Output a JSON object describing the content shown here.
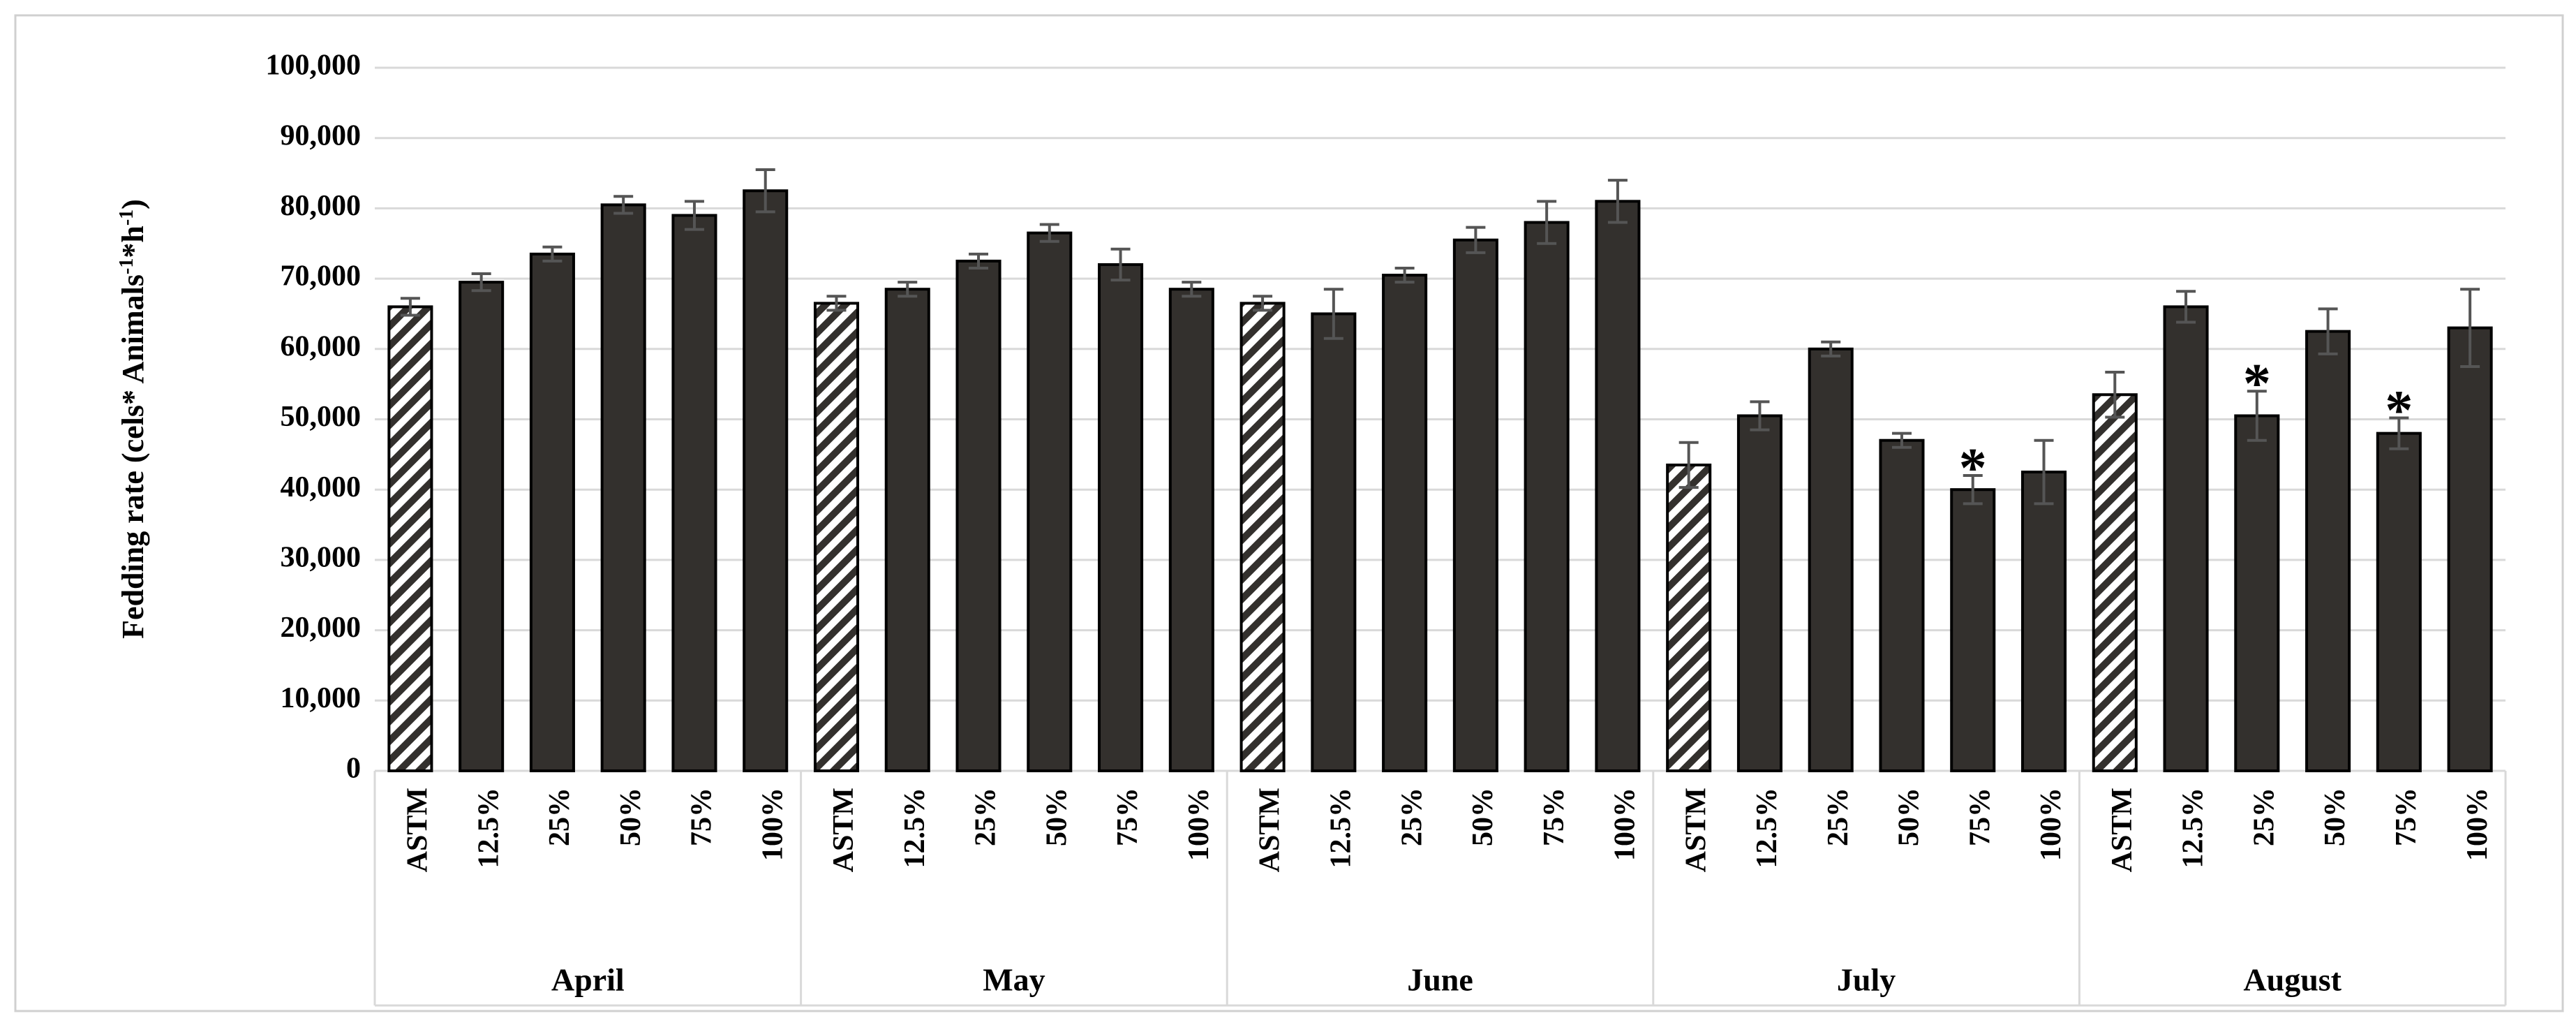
{
  "chart_data": {
    "type": "grouped_bar",
    "ylabel_parts": [
      "Fedding rate (cels* Animals",
      "-1",
      "*h",
      "-1",
      ")"
    ],
    "ylim": [
      0,
      100000
    ],
    "yticks": [
      0,
      {
        "value": 10000,
        "label": "10,000"
      },
      {
        "value": 20000,
        "label": "20,000"
      },
      {
        "value": 30000,
        "label": "30,000"
      },
      {
        "value": 40000,
        "label": "40,000"
      },
      {
        "value": 50000,
        "label": "50,000"
      },
      {
        "value": 60000,
        "label": "60,000"
      },
      {
        "value": 70000,
        "label": "70,000"
      },
      {
        "value": 80000,
        "label": "80,000"
      },
      {
        "value": 90000,
        "label": "90,000"
      },
      {
        "value": 100000,
        "label": "100,000"
      }
    ],
    "grid": true,
    "color": "#33302d",
    "hatch_first": true,
    "groups": [
      {
        "name": "April",
        "categories": [
          "ASTM",
          "12.5%",
          "25%",
          "50%",
          "75%",
          "100%"
        ],
        "values": [
          66000,
          69500,
          73500,
          80500,
          79000,
          82500
        ],
        "errors": [
          1200,
          1200,
          1000,
          1200,
          2000,
          3000
        ],
        "significance": [
          null,
          null,
          null,
          null,
          null,
          null
        ]
      },
      {
        "name": "May",
        "categories": [
          "ASTM",
          "12.5%",
          "25%",
          "50%",
          "75%",
          "100%"
        ],
        "values": [
          66500,
          68500,
          72500,
          76500,
          72000,
          68500
        ],
        "errors": [
          1000,
          1000,
          1000,
          1200,
          2200,
          1000
        ],
        "significance": [
          null,
          null,
          null,
          null,
          null,
          null
        ]
      },
      {
        "name": "June",
        "categories": [
          "ASTM",
          "12.5%",
          "25%",
          "50%",
          "75%",
          "100%"
        ],
        "values": [
          66500,
          65000,
          70500,
          75500,
          78000,
          81000
        ],
        "errors": [
          1000,
          3500,
          1000,
          1800,
          3000,
          3000
        ],
        "significance": [
          null,
          null,
          null,
          null,
          null,
          null
        ]
      },
      {
        "name": "July",
        "categories": [
          "ASTM",
          "12.5%",
          "25%",
          "50%",
          "75%",
          "100%"
        ],
        "values": [
          43500,
          50500,
          60000,
          47000,
          40000,
          42500
        ],
        "errors": [
          3200,
          2000,
          1000,
          1000,
          2000,
          4500
        ],
        "significance": [
          null,
          null,
          null,
          null,
          "*",
          null
        ]
      },
      {
        "name": "August",
        "categories": [
          "ASTM",
          "12.5%",
          "25%",
          "50%",
          "75%",
          "100%"
        ],
        "values": [
          53500,
          66000,
          50500,
          62500,
          48000,
          63000
        ],
        "errors": [
          3200,
          2200,
          3500,
          3200,
          2200,
          5500
        ],
        "significance": [
          null,
          null,
          "*",
          null,
          "*",
          null
        ]
      }
    ]
  }
}
